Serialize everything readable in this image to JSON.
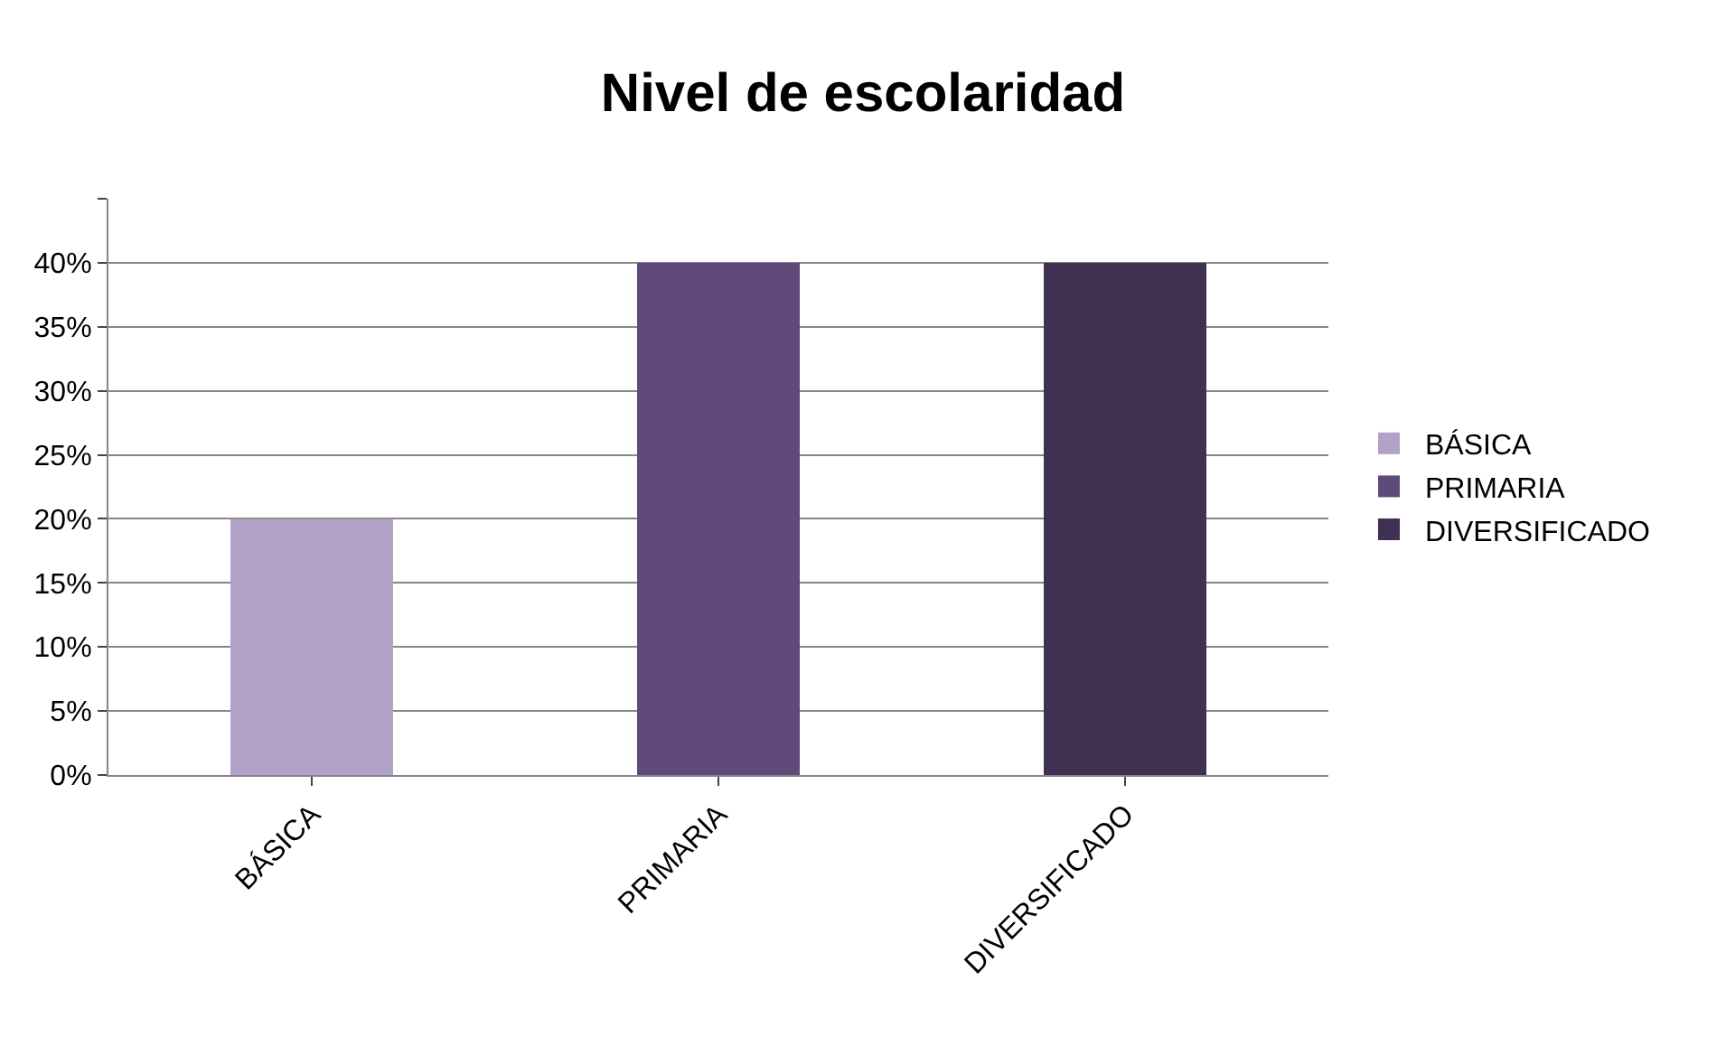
{
  "chart_data": {
    "type": "bar",
    "title": "Nivel de escolaridad",
    "categories": [
      "BÁSICA",
      "PRIMARIA",
      "DIVERSIFICADO"
    ],
    "series": [
      {
        "name": "BÁSICA",
        "color": "#b3a2c7",
        "values": [
          20,
          null,
          null
        ]
      },
      {
        "name": "PRIMARIA",
        "color": "#604a7b",
        "values": [
          null,
          40,
          null
        ]
      },
      {
        "name": "DIVERSIFICADO",
        "color": "#403152",
        "values": [
          null,
          null,
          40
        ]
      }
    ],
    "ylim": [
      0,
      45
    ],
    "yticks": [
      {
        "value": 0,
        "label": "0%"
      },
      {
        "value": 5,
        "label": "5%"
      },
      {
        "value": 10,
        "label": "10%"
      },
      {
        "value": 15,
        "label": "15%"
      },
      {
        "value": 20,
        "label": "20%"
      },
      {
        "value": 25,
        "label": "25%"
      },
      {
        "value": 30,
        "label": "30%"
      },
      {
        "value": 35,
        "label": "35%"
      },
      {
        "value": 40,
        "label": "40%"
      },
      {
        "value": 45,
        "label": null
      }
    ],
    "grid": "y",
    "legend": "right"
  }
}
